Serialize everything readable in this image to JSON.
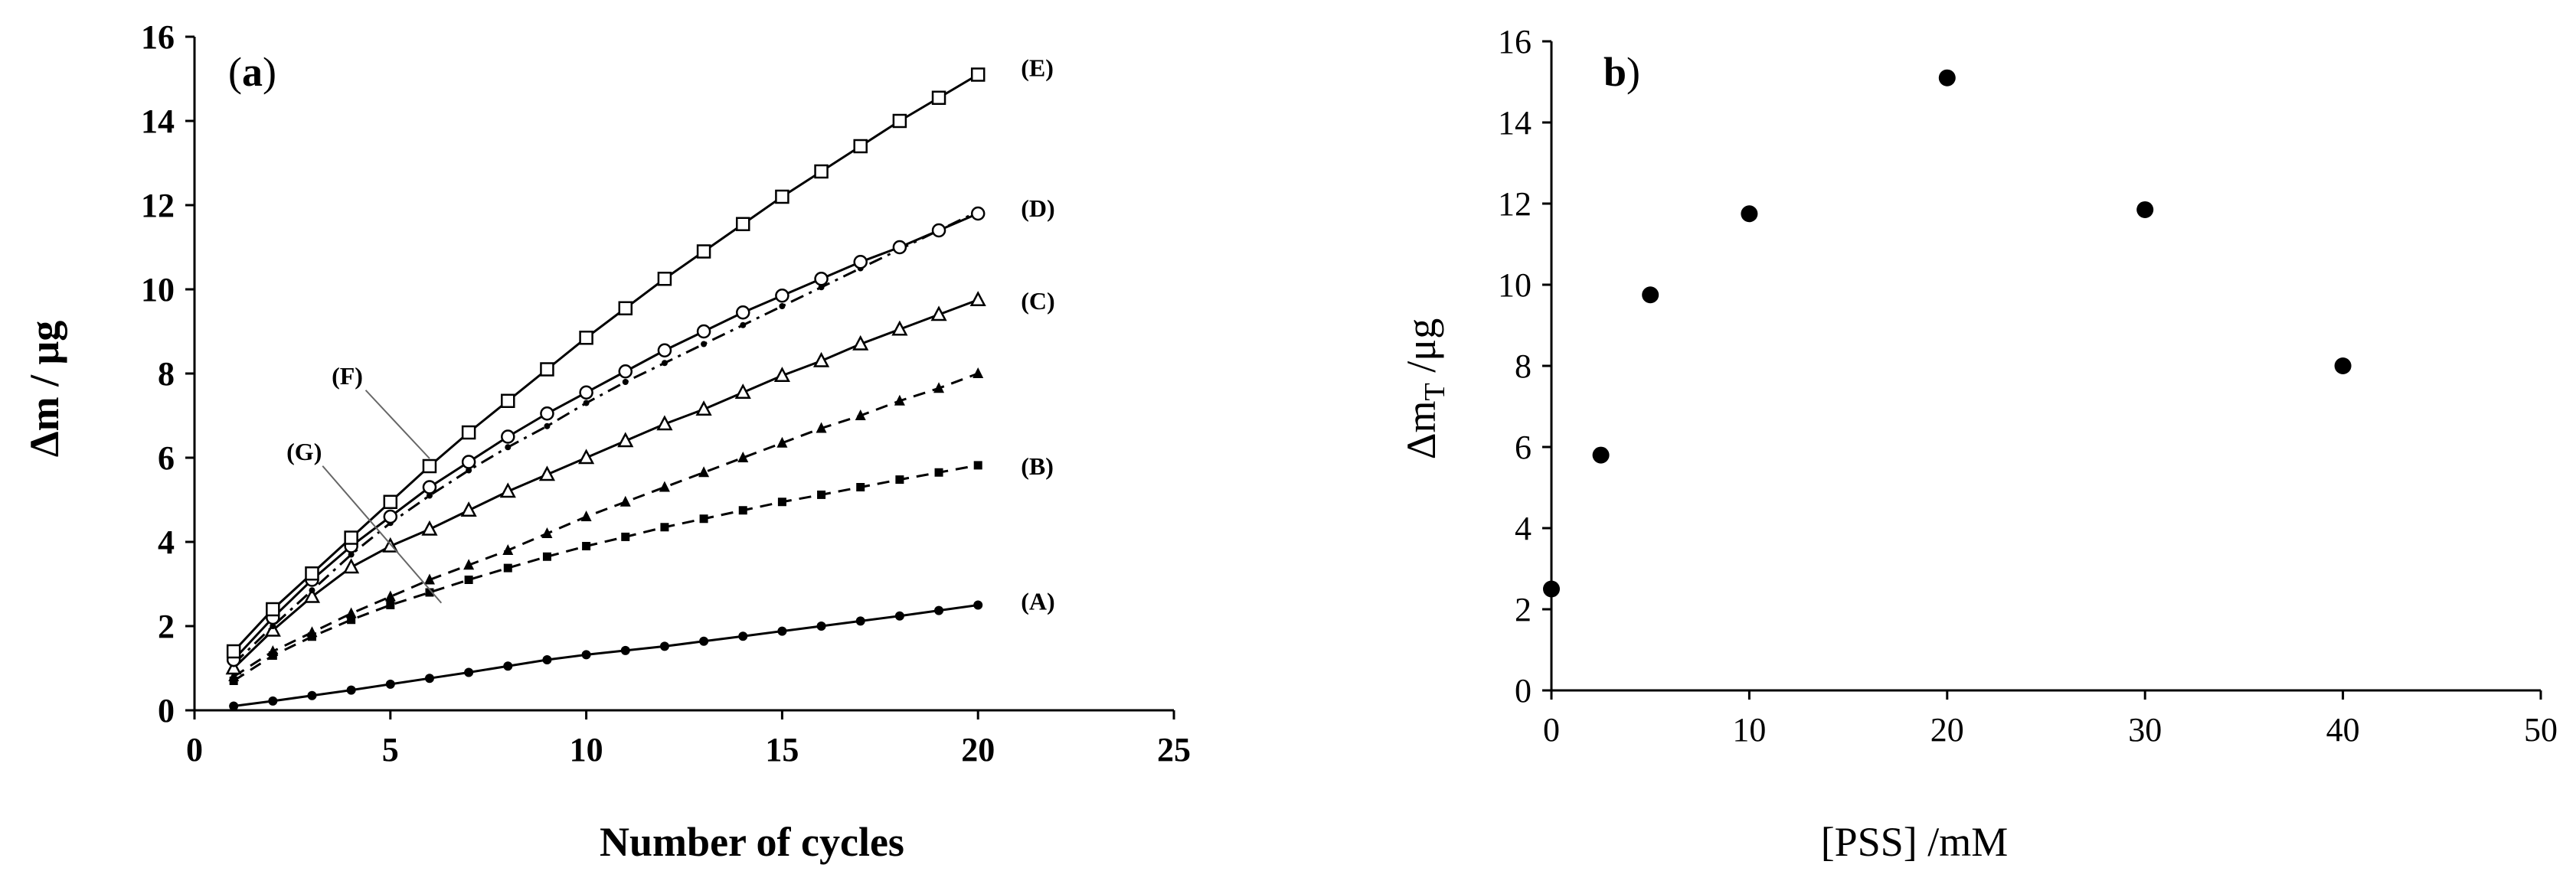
{
  "chart_data": [
    {
      "type": "line",
      "panel_label": "a",
      "xlabel": "Number of cycles",
      "ylabel": "Δm / μg",
      "xlim": [
        0,
        25
      ],
      "ylim": [
        0,
        16
      ],
      "xticks": [
        0,
        5,
        10,
        15,
        20,
        25
      ],
      "yticks": [
        0,
        2,
        4,
        6,
        8,
        10,
        12,
        14,
        16
      ],
      "x": [
        1,
        2,
        3,
        4,
        5,
        6,
        7,
        8,
        9,
        10,
        11,
        12,
        13,
        14,
        15,
        16,
        17,
        18,
        19,
        20
      ],
      "series": [
        {
          "name": "(A)",
          "marker": "filled-circle",
          "line": "solid",
          "values": [
            0.1,
            0.22,
            0.35,
            0.48,
            0.62,
            0.76,
            0.9,
            1.05,
            1.2,
            1.32,
            1.42,
            1.52,
            1.64,
            1.76,
            1.88,
            2.0,
            2.12,
            2.24,
            2.37,
            2.5
          ]
        },
        {
          "name": "(B)",
          "marker": "filled-square",
          "line": "dashed",
          "values": [
            0.7,
            1.3,
            1.75,
            2.15,
            2.5,
            2.8,
            3.1,
            3.38,
            3.65,
            3.9,
            4.12,
            4.35,
            4.55,
            4.75,
            4.95,
            5.12,
            5.3,
            5.48,
            5.65,
            5.82
          ]
        },
        {
          "name": "(C)",
          "marker": "open-triangle",
          "line": "solid",
          "values": [
            1.0,
            1.9,
            2.7,
            3.4,
            3.9,
            4.3,
            4.75,
            5.2,
            5.6,
            6.0,
            6.4,
            6.8,
            7.15,
            7.55,
            7.95,
            8.3,
            8.7,
            9.05,
            9.4,
            9.75
          ]
        },
        {
          "name": "(D)",
          "marker": "open-circle",
          "line": "solid",
          "values": [
            1.2,
            2.2,
            3.1,
            3.9,
            4.6,
            5.3,
            5.9,
            6.5,
            7.05,
            7.55,
            8.05,
            8.55,
            9.0,
            9.45,
            9.85,
            10.25,
            10.65,
            11.0,
            11.4,
            11.8
          ]
        },
        {
          "name": "(E)",
          "marker": "open-square",
          "line": "solid",
          "values": [
            1.4,
            2.4,
            3.25,
            4.1,
            4.95,
            5.8,
            6.6,
            7.35,
            8.1,
            8.85,
            9.55,
            10.25,
            10.9,
            11.55,
            12.2,
            12.8,
            13.4,
            14.0,
            14.55,
            15.1
          ]
        },
        {
          "name": "(F)",
          "marker": "small-dot",
          "line": "dash-dot",
          "values": [
            1.1,
            2.0,
            2.85,
            3.7,
            4.45,
            5.1,
            5.7,
            6.25,
            6.75,
            7.3,
            7.8,
            8.25,
            8.7,
            9.15,
            9.6,
            10.05,
            10.5,
            10.95,
            11.4,
            11.85
          ]
        },
        {
          "name": "(G)",
          "marker": "filled-triangle",
          "line": "dashed",
          "values": [
            0.8,
            1.4,
            1.85,
            2.3,
            2.7,
            3.1,
            3.45,
            3.8,
            4.2,
            4.6,
            4.95,
            5.3,
            5.65,
            6.0,
            6.35,
            6.7,
            7.0,
            7.35,
            7.65,
            8.0
          ]
        }
      ],
      "annotations": [
        "(A)",
        "(B)",
        "(C)",
        "(D)",
        "(E)",
        "(F)",
        "(G)"
      ]
    },
    {
      "type": "scatter",
      "panel_label": "b",
      "xlabel": "[PSS] /mM",
      "ylabel_main": "Δm",
      "ylabel_sub": "T",
      "ylabel_rest": " /μg",
      "xlim": [
        0,
        50
      ],
      "ylim": [
        0,
        16
      ],
      "xticks": [
        0,
        10,
        20,
        30,
        40,
        50
      ],
      "yticks": [
        0,
        2,
        4,
        6,
        8,
        10,
        12,
        14,
        16
      ],
      "x": [
        0,
        2.5,
        5,
        10,
        20,
        30,
        40
      ],
      "values": [
        2.5,
        5.8,
        9.75,
        11.75,
        15.1,
        11.85,
        8.0
      ]
    }
  ]
}
